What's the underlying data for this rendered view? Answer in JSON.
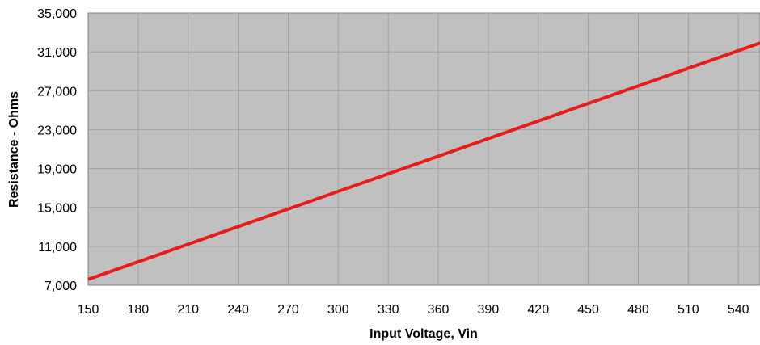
{
  "chart_data": {
    "type": "line",
    "title": "",
    "xlabel": "Input Voltage, Vin",
    "ylabel": "Resistance - Ohms",
    "xlim": [
      150,
      553
    ],
    "ylim": [
      7000,
      35000
    ],
    "x_ticks": [
      150,
      180,
      210,
      240,
      270,
      300,
      330,
      360,
      390,
      420,
      450,
      480,
      510,
      540
    ],
    "y_ticks": [
      7000,
      11000,
      15000,
      19000,
      23000,
      27000,
      31000,
      35000
    ],
    "x_tick_labels": [
      "150",
      "180",
      "210",
      "240",
      "270",
      "300",
      "330",
      "360",
      "390",
      "420",
      "450",
      "480",
      "510",
      "540"
    ],
    "y_tick_labels": [
      "7,000",
      "11,000",
      "15,000",
      "19,000",
      "23,000",
      "27,000",
      "31,000",
      "35,000"
    ],
    "grid": true,
    "legend": "none",
    "plot_background": "#c0c0c0",
    "series": [
      {
        "color": "#e81c1c",
        "x": [
          150,
          553
        ],
        "y": [
          7600,
          31900
        ]
      }
    ]
  }
}
